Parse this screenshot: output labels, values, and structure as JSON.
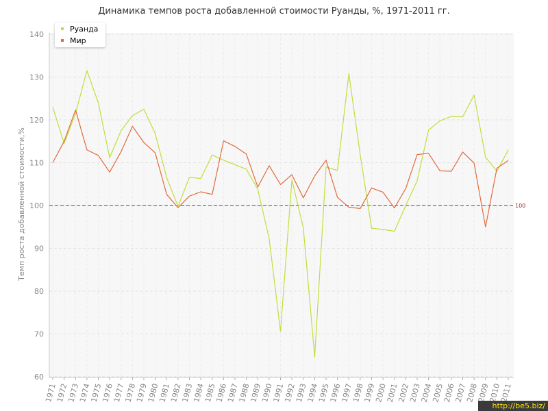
{
  "chart_data": {
    "type": "line",
    "title": "Динамика темпов роста добавленной стоимости Руанды, %, 1971-2011 гг.",
    "xlabel": "",
    "ylabel": "Темп роста добавленной стоимости,%",
    "ylim": [
      60,
      140
    ],
    "yticks": [
      "60",
      "70",
      "80",
      "90",
      "100",
      "110",
      "120",
      "130",
      "140"
    ],
    "categories": [
      "1971",
      "1972",
      "1973",
      "1974",
      "1975",
      "1976",
      "1977",
      "1978",
      "1979",
      "1980",
      "1981",
      "1982",
      "1983",
      "1984",
      "1985",
      "1986",
      "1987",
      "1988",
      "1989",
      "1990",
      "1991",
      "1992",
      "1993",
      "1994",
      "1995",
      "1996",
      "1997",
      "1998",
      "1999",
      "2000",
      "2001",
      "2002",
      "2003",
      "2004",
      "2005",
      "2006",
      "2007",
      "2008",
      "2009",
      "2010",
      "2011"
    ],
    "series": [
      {
        "name": "Руанда",
        "color": "#c2dd3b",
        "values": [
          123.0,
          114.5,
          121.5,
          131.5,
          124.0,
          111.2,
          117.5,
          121.0,
          122.5,
          116.8,
          106.5,
          99.8,
          106.6,
          106.3,
          111.8,
          110.6,
          109.5,
          108.5,
          103.8,
          92.3,
          70.6,
          106.0,
          94.8,
          64.6,
          109.0,
          108.2,
          130.8,
          111.8,
          94.7,
          94.4,
          94.0,
          100.0,
          105.8,
          117.6,
          119.8,
          120.8,
          120.7,
          125.8,
          111.3,
          108.0,
          113.0
        ]
      },
      {
        "name": "Мир",
        "color": "#e26a3c",
        "values": [
          110.0,
          115.0,
          122.3,
          113.0,
          111.7,
          107.8,
          112.6,
          118.5,
          114.7,
          112.3,
          102.6,
          99.5,
          102.2,
          103.2,
          102.6,
          115.1,
          113.8,
          112.0,
          104.3,
          109.3,
          104.9,
          107.2,
          101.8,
          106.9,
          110.6,
          101.9,
          99.6,
          99.3,
          104.1,
          103.1,
          99.4,
          104.0,
          111.9,
          112.2,
          108.1,
          108.0,
          112.5,
          109.9,
          95.0,
          108.7,
          110.5
        ]
      }
    ],
    "reference_line": {
      "value": 100,
      "label": "100",
      "color": "#8b2a2a"
    },
    "legend_position": "top-left",
    "grid": true
  },
  "watermark": "http://be5.biz/"
}
